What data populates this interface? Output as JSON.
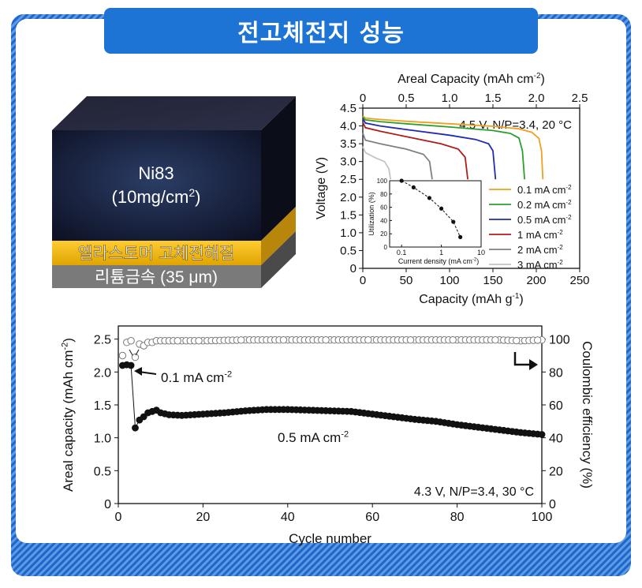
{
  "header": {
    "title": "전고체전지 성능"
  },
  "cell": {
    "cathode_name": "Ni83",
    "cathode_loading": "(10mg/cm",
    "cathode_loading_sup": "2",
    "cathode_loading_end": ")",
    "electrolyte_label": "엘라스토머 고체전해질",
    "anode_label": "리튬금속 (35 μm)"
  },
  "colors": {
    "banner": "#1d74d4",
    "frame_stripe": "#1e66c9",
    "series": [
      "#f0a01e",
      "#2ca02c",
      "#1f2bb3",
      "#b01c1c",
      "#808080",
      "#c4c4c4"
    ]
  },
  "chart_data": [
    {
      "type": "line",
      "title": "",
      "xlabel": "Capacity (mAh g",
      "xlabel_sup": "-1",
      "xlabel_end": ")",
      "ylabel": "Voltage (V)",
      "xlim": [
        0,
        250
      ],
      "ylim": [
        0,
        4.5
      ],
      "x_ticks": [
        "0",
        "50",
        "100",
        "150",
        "200",
        "250"
      ],
      "y_ticks": [
        "0",
        "0.5",
        "1.0",
        "1.5",
        "2.0",
        "2.5",
        "3.0",
        "3.5",
        "4.0",
        "4.5"
      ],
      "top_axis": {
        "label": "Areal Capacity (mAh cm",
        "label_sup": "-2",
        "label_end": ")",
        "lim": [
          0,
          2.5
        ],
        "ticks": [
          "0",
          "0.5",
          "1.0",
          "1.5",
          "2.0",
          "2.5"
        ]
      },
      "annotation": "4.5 V, N/P=3.4, 20 °C",
      "legend_position": "bottom-right",
      "series": [
        {
          "name": "0.1 mA cm",
          "sup": "-2",
          "x": [
            0,
            3,
            20,
            50,
            100,
            150,
            180,
            195,
            203,
            206,
            207.5
          ],
          "y": [
            4.28,
            4.22,
            4.18,
            4.13,
            4.06,
            3.99,
            3.92,
            3.82,
            3.65,
            3.3,
            2.5
          ]
        },
        {
          "name": "0.2 mA cm",
          "sup": "-2",
          "x": [
            0,
            3,
            20,
            50,
            100,
            150,
            170,
            180,
            184,
            186.5
          ],
          "y": [
            4.25,
            4.17,
            4.12,
            4.06,
            3.97,
            3.87,
            3.79,
            3.66,
            3.3,
            2.5
          ]
        },
        {
          "name": "0.5 mA cm",
          "sup": "-2",
          "x": [
            0,
            3,
            20,
            50,
            100,
            130,
            145,
            150,
            153
          ],
          "y": [
            4.2,
            4.08,
            4.0,
            3.9,
            3.74,
            3.62,
            3.5,
            3.3,
            2.5
          ]
        },
        {
          "name": "1 mA cm",
          "sup": "-2",
          "x": [
            0,
            3,
            20,
            50,
            90,
            110,
            118,
            121
          ],
          "y": [
            4.1,
            3.95,
            3.85,
            3.7,
            3.5,
            3.35,
            3.12,
            2.5
          ]
        },
        {
          "name": "2 mA cm",
          "sup": "-2",
          "x": [
            0,
            3,
            20,
            50,
            70,
            77,
            80
          ],
          "y": [
            3.8,
            3.6,
            3.5,
            3.35,
            3.2,
            3.0,
            2.5
          ]
        },
        {
          "name": "3 mA cm",
          "sup": "-2",
          "x": [
            0,
            3,
            15,
            25,
            30,
            32
          ],
          "y": [
            3.42,
            3.25,
            3.1,
            3.0,
            2.8,
            2.5
          ]
        }
      ],
      "inset": {
        "type": "scatter",
        "xlabel": "Current density (mA cm",
        "xlabel_sup": "-2",
        "xlabel_end": ")",
        "ylabel": "Utilization (%)",
        "xscale": "log",
        "xlim": [
          0.05,
          10
        ],
        "ylim": [
          0,
          100
        ],
        "x_ticks": [
          {
            "v": 0.1,
            "label": "0.1"
          },
          {
            "v": 1,
            "label": "1"
          },
          {
            "v": 10,
            "label": "10"
          }
        ],
        "y_ticks": [
          "0",
          "20",
          "40",
          "60",
          "80",
          "100"
        ],
        "x": [
          0.1,
          0.2,
          0.5,
          1,
          2,
          3
        ],
        "y": [
          100,
          90,
          74,
          58,
          38,
          15
        ]
      }
    },
    {
      "type": "scatter",
      "title": "",
      "xlabel": "Cycle number",
      "ylabel": "Areal capacity (mAh cm",
      "ylabel_sup": "-2",
      "ylabel_end": ")",
      "y2label": "Coulombic efficiency (%)",
      "xlim": [
        0,
        100
      ],
      "ylim": [
        0,
        2.7
      ],
      "y2lim": [
        0,
        108
      ],
      "x_ticks": [
        "0",
        "20",
        "40",
        "60",
        "80",
        "100"
      ],
      "y_ticks": [
        "0",
        "0.5",
        "1.0",
        "1.5",
        "2.0",
        "2.5"
      ],
      "y2_ticks": [
        "0",
        "20",
        "40",
        "60",
        "80",
        "100"
      ],
      "annotation_top": "0.1 mA cm",
      "annotation_top_sup": "-2",
      "annotation_mid": "0.5 mA cm",
      "annotation_mid_sup": "-2",
      "annotation_corner": "4.3 V, N/P=3.4, 30 °C",
      "capacity": {
        "x": [
          1,
          2,
          3,
          4,
          5,
          6,
          7,
          8,
          9,
          10,
          12,
          15,
          20,
          25,
          30,
          35,
          40,
          45,
          50,
          55,
          60,
          65,
          70,
          75,
          80,
          85,
          90,
          95,
          100
        ],
        "y": [
          2.1,
          2.11,
          2.1,
          1.15,
          1.27,
          1.32,
          1.38,
          1.4,
          1.42,
          1.38,
          1.35,
          1.34,
          1.36,
          1.38,
          1.41,
          1.43,
          1.43,
          1.42,
          1.41,
          1.4,
          1.36,
          1.32,
          1.28,
          1.25,
          1.2,
          1.16,
          1.12,
          1.08,
          1.05
        ]
      },
      "efficiency": {
        "x": [
          1,
          2,
          3,
          4,
          5,
          6,
          7,
          8,
          9,
          10,
          15,
          20,
          30,
          40,
          50,
          60,
          70,
          80,
          90,
          95,
          100
        ],
        "y": [
          90,
          98,
          99,
          89,
          97,
          96,
          98,
          98,
          99,
          99,
          99,
          99,
          99.5,
          99.5,
          99.5,
          99.5,
          99.5,
          99.5,
          99.5,
          99,
          99.5
        ]
      }
    }
  ]
}
